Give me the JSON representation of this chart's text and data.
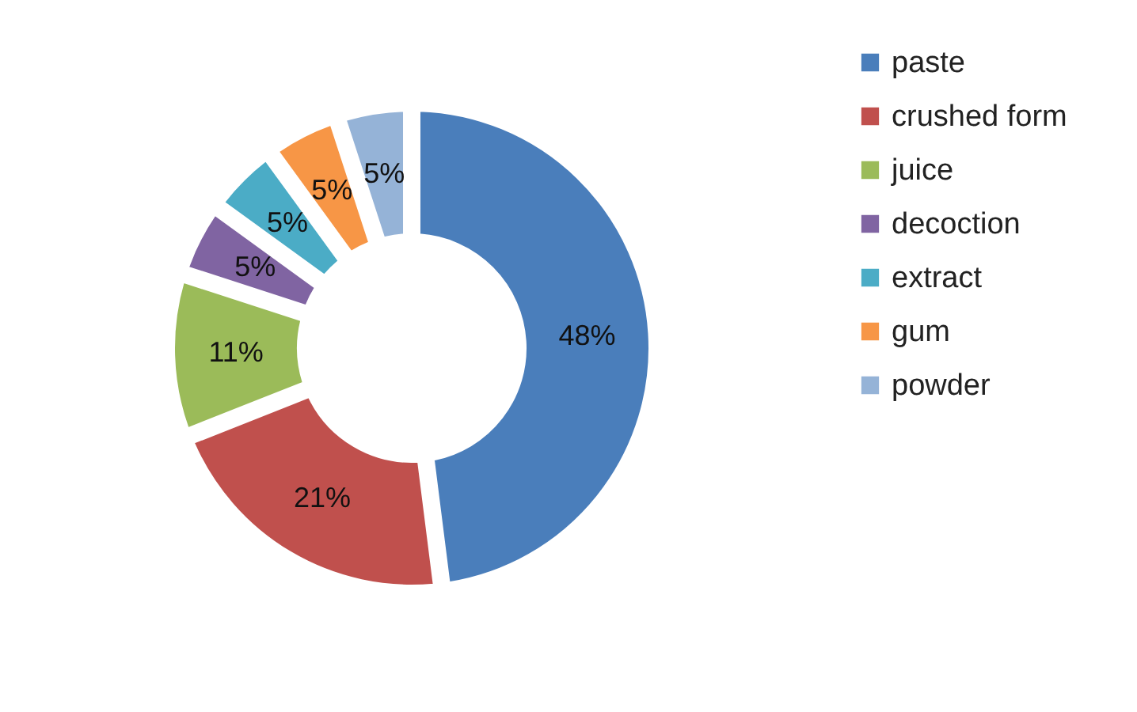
{
  "chart_data": {
    "type": "donut",
    "categories": [
      "paste",
      "crushed form",
      "juice",
      "decoction",
      "extract",
      "gum",
      "powder"
    ],
    "values": [
      48,
      21,
      11,
      5,
      5,
      5,
      5
    ],
    "colors": [
      "#4a7ebb",
      "#c0504d",
      "#9bbb59",
      "#8064a2",
      "#4bacc6",
      "#f79646",
      "#95b3d7"
    ],
    "value_labels": [
      "48%",
      "21%",
      "11%",
      "5%",
      "5%",
      "5%",
      "5%"
    ],
    "legend": "right"
  }
}
